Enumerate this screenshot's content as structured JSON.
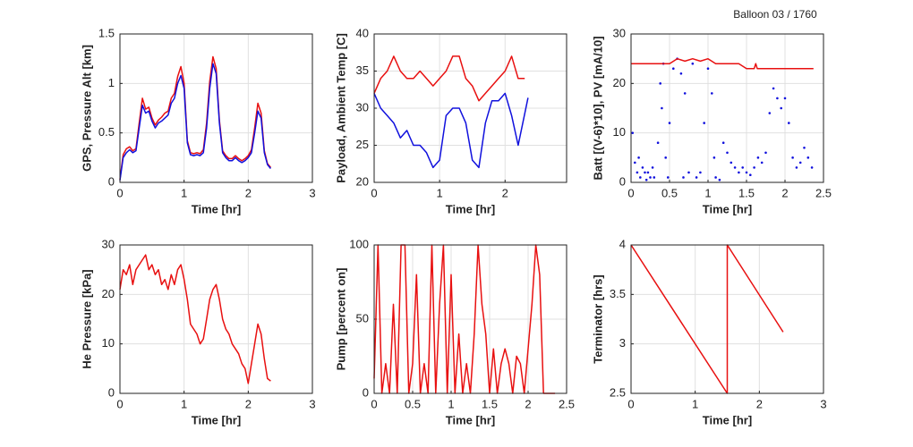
{
  "title": "Balloon 03 / 1760",
  "chart_data": [
    {
      "type": "line",
      "ylabel": "GPS, Pressure Alt [km]",
      "xlabel": "Time [hr]",
      "xlim": [
        0,
        3
      ],
      "xticks": [
        0,
        1,
        2,
        3
      ],
      "ylim": [
        0,
        1.5
      ],
      "yticks": [
        0,
        0.5,
        1,
        1.5
      ],
      "grid": true,
      "series": [
        {
          "color": "#e81010",
          "x": [
            0,
            0.05,
            0.1,
            0.15,
            0.2,
            0.25,
            0.3,
            0.35,
            0.4,
            0.45,
            0.5,
            0.55,
            0.6,
            0.65,
            0.7,
            0.75,
            0.8,
            0.85,
            0.9,
            0.95,
            1,
            1.05,
            1.1,
            1.15,
            1.2,
            1.25,
            1.3,
            1.35,
            1.4,
            1.45,
            1.5,
            1.55,
            1.6,
            1.65,
            1.7,
            1.75,
            1.8,
            1.85,
            1.9,
            1.95,
            2,
            2.05,
            2.1,
            2.15,
            2.2,
            2.25,
            2.3,
            2.35
          ],
          "values": [
            0.03,
            0.28,
            0.34,
            0.36,
            0.32,
            0.34,
            0.6,
            0.85,
            0.74,
            0.76,
            0.65,
            0.58,
            0.63,
            0.66,
            0.7,
            0.72,
            0.85,
            0.9,
            1.07,
            1.17,
            1.0,
            0.42,
            0.3,
            0.29,
            0.3,
            0.29,
            0.33,
            0.6,
            1.02,
            1.27,
            1.15,
            0.63,
            0.32,
            0.27,
            0.24,
            0.24,
            0.27,
            0.24,
            0.22,
            0.24,
            0.27,
            0.33,
            0.55,
            0.8,
            0.7,
            0.32,
            0.19,
            0.15
          ]
        },
        {
          "color": "#1010dd",
          "x": [
            0,
            0.05,
            0.1,
            0.15,
            0.2,
            0.25,
            0.3,
            0.35,
            0.4,
            0.45,
            0.5,
            0.55,
            0.6,
            0.65,
            0.7,
            0.75,
            0.8,
            0.85,
            0.9,
            0.95,
            1,
            1.05,
            1.1,
            1.15,
            1.2,
            1.25,
            1.3,
            1.35,
            1.4,
            1.45,
            1.5,
            1.55,
            1.6,
            1.65,
            1.7,
            1.75,
            1.8,
            1.85,
            1.9,
            1.95,
            2,
            2.05,
            2.1,
            2.15,
            2.2,
            2.25,
            2.3,
            2.35
          ],
          "values": [
            0.02,
            0.25,
            0.3,
            0.33,
            0.3,
            0.32,
            0.55,
            0.78,
            0.7,
            0.72,
            0.62,
            0.55,
            0.6,
            0.62,
            0.65,
            0.68,
            0.8,
            0.85,
            1.0,
            1.08,
            0.95,
            0.4,
            0.28,
            0.27,
            0.28,
            0.27,
            0.3,
            0.55,
            0.95,
            1.2,
            1.1,
            0.6,
            0.3,
            0.25,
            0.22,
            0.22,
            0.25,
            0.22,
            0.2,
            0.22,
            0.25,
            0.3,
            0.5,
            0.72,
            0.65,
            0.3,
            0.18,
            0.14
          ]
        }
      ]
    },
    {
      "type": "line",
      "ylabel": "Payload, Ambient Temp [C]",
      "xlabel": "Time [hr]",
      "xlim": [
        0,
        2.94
      ],
      "xticks": [
        0,
        1,
        2
      ],
      "ylim": [
        20,
        40
      ],
      "yticks": [
        20,
        25,
        30,
        35,
        40
      ],
      "grid": true,
      "series": [
        {
          "color": "#e81010",
          "x": [
            0,
            0.1,
            0.2,
            0.3,
            0.4,
            0.5,
            0.6,
            0.7,
            0.8,
            0.9,
            1,
            1.1,
            1.2,
            1.3,
            1.4,
            1.5,
            1.6,
            1.7,
            1.8,
            1.9,
            2,
            2.1,
            2.2,
            2.3
          ],
          "values": [
            32,
            34,
            35,
            37,
            35,
            34,
            34,
            35,
            34,
            33,
            34,
            35,
            37,
            37,
            34,
            33,
            31,
            32,
            33,
            34,
            35,
            37,
            34,
            34
          ]
        },
        {
          "color": "#1010dd",
          "x": [
            0,
            0.1,
            0.2,
            0.3,
            0.4,
            0.5,
            0.6,
            0.7,
            0.8,
            0.9,
            1,
            1.1,
            1.2,
            1.3,
            1.4,
            1.5,
            1.6,
            1.7,
            1.8,
            1.9,
            2,
            2.1,
            2.2,
            2.35
          ],
          "values": [
            32,
            30,
            29,
            28,
            26,
            27,
            25,
            25,
            24,
            22,
            23,
            29,
            30,
            30,
            28,
            23,
            22,
            28,
            31,
            31,
            32,
            29,
            25,
            31.4
          ]
        }
      ]
    },
    {
      "type": "scatter",
      "ylabel": "Batt [(V-6)*10], PV [mA/10]",
      "xlabel": "Time [hr]",
      "xlim": [
        0,
        2.5
      ],
      "xticks": [
        0,
        0.5,
        1,
        1.5,
        2,
        2.5
      ],
      "ylim": [
        0,
        30
      ],
      "yticks": [
        0,
        10,
        20,
        30
      ],
      "grid": true,
      "series": [
        {
          "color": "#1010dd",
          "x": [
            0.02,
            0.05,
            0.08,
            0.1,
            0.12,
            0.15,
            0.18,
            0.2,
            0.22,
            0.25,
            0.28,
            0.3,
            0.35,
            0.38,
            0.4,
            0.42,
            0.45,
            0.48,
            0.5,
            0.55,
            0.6,
            0.65,
            0.68,
            0.7,
            0.75,
            0.8,
            0.85,
            0.9,
            0.95,
            1,
            1.05,
            1.08,
            1.1,
            1.15,
            1.2,
            1.25,
            1.3,
            1.35,
            1.4,
            1.45,
            1.5,
            1.55,
            1.6,
            1.65,
            1.7,
            1.75,
            1.8,
            1.85,
            1.9,
            1.95,
            2,
            2.05,
            2.1,
            2.15,
            2.2,
            2.25,
            2.3,
            2.35
          ],
          "values": [
            10,
            4,
            2,
            5,
            1,
            3,
            2,
            0.5,
            2,
            1,
            3,
            1,
            8,
            20,
            15,
            24,
            5,
            1,
            12,
            23,
            25,
            22,
            1,
            18,
            2,
            24,
            1,
            2,
            12,
            23,
            18,
            5,
            1,
            0.5,
            8,
            6,
            4,
            3,
            2,
            3,
            2,
            1.5,
            3,
            5,
            4,
            6,
            14,
            19,
            17,
            15,
            17,
            12,
            5,
            3,
            4,
            7,
            5,
            3
          ]
        },
        {
          "type": "line",
          "color": "#e81010",
          "x": [
            0,
            0.5,
            0.6,
            0.7,
            0.8,
            0.9,
            1,
            1.1,
            1.4,
            1.5,
            1.6,
            1.62,
            1.64,
            2.37
          ],
          "values": [
            24,
            24,
            25,
            24.5,
            25,
            24.5,
            25,
            24,
            24,
            23,
            23,
            24,
            23,
            23
          ]
        }
      ]
    },
    {
      "type": "line",
      "ylabel": "He Pressure [kPa]",
      "xlabel": "Time [hr]",
      "xlim": [
        0,
        3
      ],
      "xticks": [
        0,
        1,
        2,
        3
      ],
      "ylim": [
        0,
        30
      ],
      "yticks": [
        0,
        10,
        20,
        30
      ],
      "grid": true,
      "series": [
        {
          "color": "#e81010",
          "x": [
            0,
            0.05,
            0.1,
            0.15,
            0.2,
            0.25,
            0.3,
            0.35,
            0.4,
            0.45,
            0.5,
            0.55,
            0.6,
            0.65,
            0.7,
            0.75,
            0.8,
            0.85,
            0.9,
            0.95,
            1,
            1.05,
            1.1,
            1.15,
            1.2,
            1.25,
            1.3,
            1.35,
            1.4,
            1.45,
            1.5,
            1.55,
            1.6,
            1.65,
            1.7,
            1.75,
            1.8,
            1.85,
            1.9,
            1.95,
            2,
            2.05,
            2.1,
            2.15,
            2.2,
            2.25,
            2.3,
            2.35
          ],
          "values": [
            21,
            25,
            24,
            26,
            22,
            25,
            26,
            27,
            28,
            25,
            26,
            24,
            25,
            22,
            23,
            21,
            24,
            22,
            25,
            26,
            23,
            19,
            14,
            13,
            12,
            10,
            11,
            15,
            19,
            21,
            22,
            19,
            15,
            13,
            12,
            10,
            9,
            8,
            6,
            5,
            2,
            6,
            10,
            14,
            12,
            7,
            3,
            2.5
          ]
        }
      ]
    },
    {
      "type": "line",
      "ylabel": "Pump [percent on]",
      "xlabel": "Time [hr]",
      "xlim": [
        0,
        2.5
      ],
      "xticks": [
        0,
        0.5,
        1,
        1.5,
        2,
        2.5
      ],
      "ylim": [
        0,
        100
      ],
      "yticks": [
        0,
        50,
        100
      ],
      "grid": true,
      "series": [
        {
          "color": "#e81010",
          "x": [
            0,
            0.05,
            0.1,
            0.15,
            0.2,
            0.25,
            0.3,
            0.35,
            0.4,
            0.45,
            0.5,
            0.55,
            0.6,
            0.65,
            0.7,
            0.75,
            0.8,
            0.85,
            0.9,
            0.95,
            1,
            1.05,
            1.1,
            1.15,
            1.2,
            1.25,
            1.3,
            1.35,
            1.4,
            1.45,
            1.5,
            1.55,
            1.6,
            1.65,
            1.7,
            1.75,
            1.8,
            1.85,
            1.9,
            1.95,
            2,
            2.05,
            2.1,
            2.15,
            2.2,
            2.25,
            2.3,
            2.35
          ],
          "values": [
            10,
            100,
            0,
            20,
            0,
            60,
            0,
            100,
            100,
            0,
            20,
            80,
            0,
            20,
            0,
            100,
            0,
            60,
            100,
            0,
            80,
            0,
            40,
            0,
            20,
            0,
            40,
            100,
            60,
            40,
            0,
            30,
            0,
            20,
            30,
            20,
            0,
            25,
            20,
            0,
            30,
            60,
            100,
            80,
            0,
            0,
            0,
            0
          ]
        }
      ]
    },
    {
      "type": "line",
      "ylabel": "Terminator [hrs]",
      "xlabel": "Time [hr]",
      "xlim": [
        0,
        3
      ],
      "xticks": [
        0,
        1,
        2,
        3
      ],
      "ylim": [
        2.5,
        4
      ],
      "yticks": [
        2.5,
        3,
        3.5,
        4
      ],
      "grid": true,
      "series": [
        {
          "color": "#e81010",
          "x": [
            0,
            1.5,
            1.5,
            2.37
          ],
          "values": [
            4,
            2.5,
            4,
            3.12
          ]
        }
      ]
    }
  ]
}
